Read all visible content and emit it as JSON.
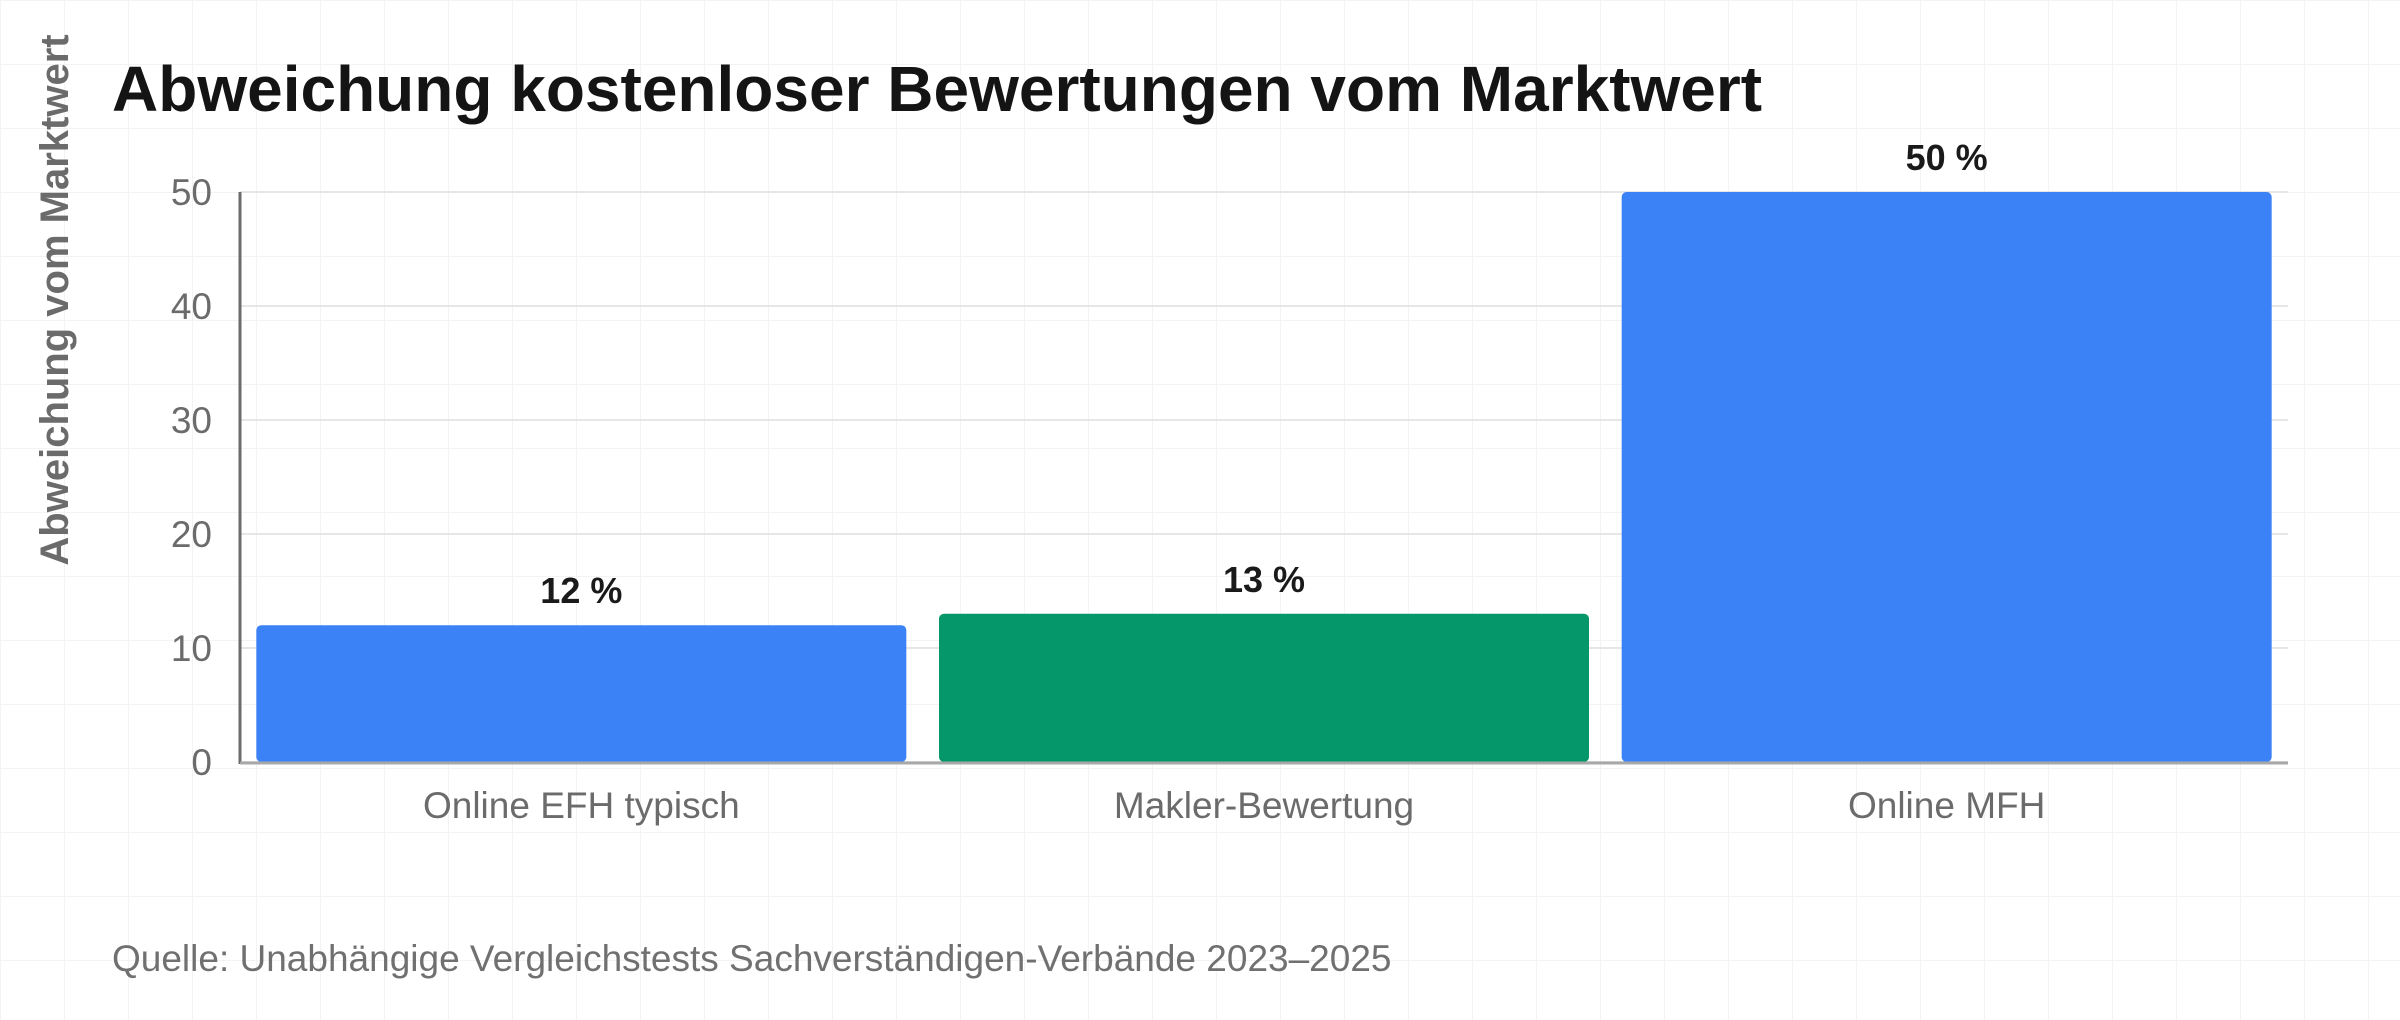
{
  "chart_data": {
    "type": "bar",
    "title": "Abweichung kostenloser Bewertungen vom Marktwert",
    "xlabel": "",
    "ylabel": "Abweichung vom Marktwert",
    "categories": [
      "Online EFH typisch",
      "Makler-Bewertung",
      "Online MFH"
    ],
    "values": [
      12,
      13,
      50
    ],
    "data_labels": [
      "12 %",
      "13 %",
      "50 %"
    ],
    "bar_colors": [
      "#3b82f6",
      "#059669",
      "#3b82f6"
    ],
    "ylim": [
      0,
      50
    ],
    "yticks": [
      0,
      10,
      20,
      30,
      40,
      50
    ],
    "grid": true,
    "legend": "none"
  },
  "source": "Quelle: Unabhängige Vergleichstests Sachverständigen-Verbände 2023–2025"
}
